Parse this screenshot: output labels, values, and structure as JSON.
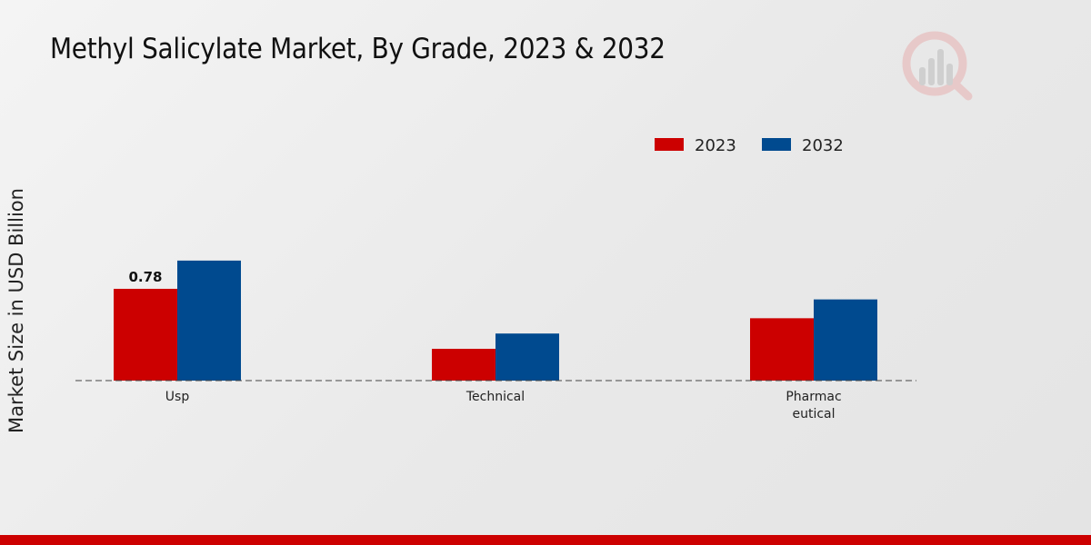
{
  "chart_data": {
    "type": "bar",
    "title": "Methyl Salicylate Market, By Grade, 2023 & 2032",
    "ylabel": "Market Size in USD Billion",
    "xlabel": "",
    "categories": [
      [
        "Usp"
      ],
      [
        "Technical"
      ],
      [
        "Pharmac",
        "eutical"
      ]
    ],
    "series": [
      {
        "name": "2023",
        "color": "#cc0000",
        "values": [
          0.78,
          0.27,
          0.53
        ]
      },
      {
        "name": "2032",
        "color": "#004a8f",
        "values": [
          1.02,
          0.4,
          0.69
        ]
      }
    ],
    "data_labels": [
      {
        "series": 0,
        "category": 0,
        "text": "0.78"
      }
    ],
    "ylim": [
      0,
      2.1
    ],
    "grid": false,
    "legend_position": "top-right"
  },
  "colors": {
    "accent_bar": "#cc0000"
  },
  "icons": {
    "logo": "brand-logo-icon"
  }
}
